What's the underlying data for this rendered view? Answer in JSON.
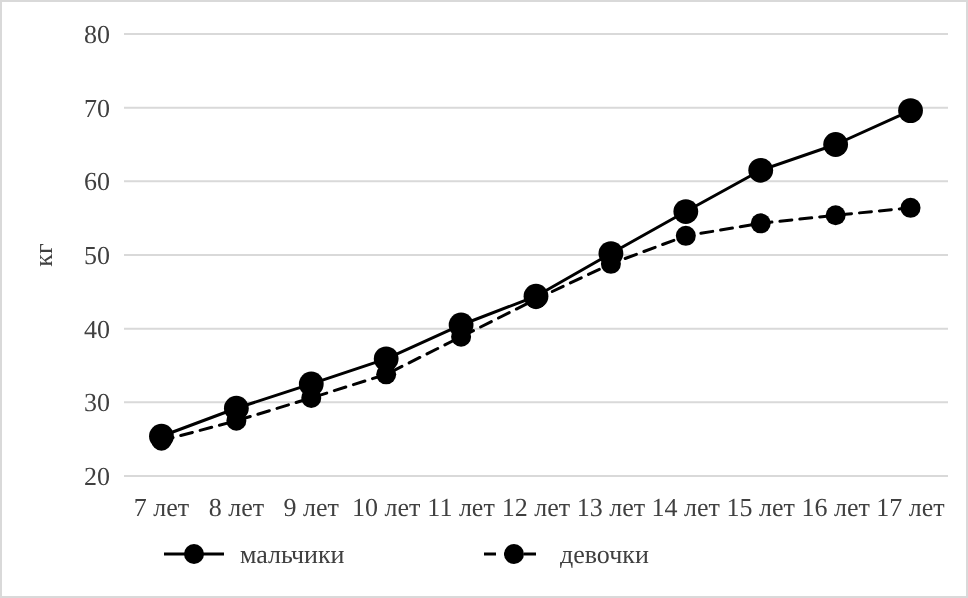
{
  "chart_data": {
    "type": "line",
    "ylabel": "кг",
    "categories": [
      "7 лет",
      "8 лет",
      "9 лет",
      "10 лет",
      "11 лет",
      "12 лет",
      "13 лет",
      "14 лет",
      "15 лет",
      "16 лет",
      "17 лет"
    ],
    "series": [
      {
        "name": "мальчики",
        "color": "#000000",
        "line_style": "solid",
        "values": [
          25.4,
          29.2,
          32.5,
          35.9,
          40.5,
          44.4,
          50.2,
          55.9,
          61.5,
          65.0,
          69.6
        ]
      },
      {
        "name": "девочки",
        "color": "#000000",
        "line_style": "dashed",
        "values": [
          24.8,
          27.5,
          30.6,
          33.8,
          38.9,
          44.0,
          48.8,
          52.6,
          54.3,
          55.4,
          56.4
        ]
      }
    ],
    "ylim": [
      20,
      80
    ],
    "yticks": [
      20,
      30,
      40,
      50,
      60,
      70,
      80
    ],
    "grid": "y",
    "legend": "bottom",
    "marker": "circle"
  }
}
